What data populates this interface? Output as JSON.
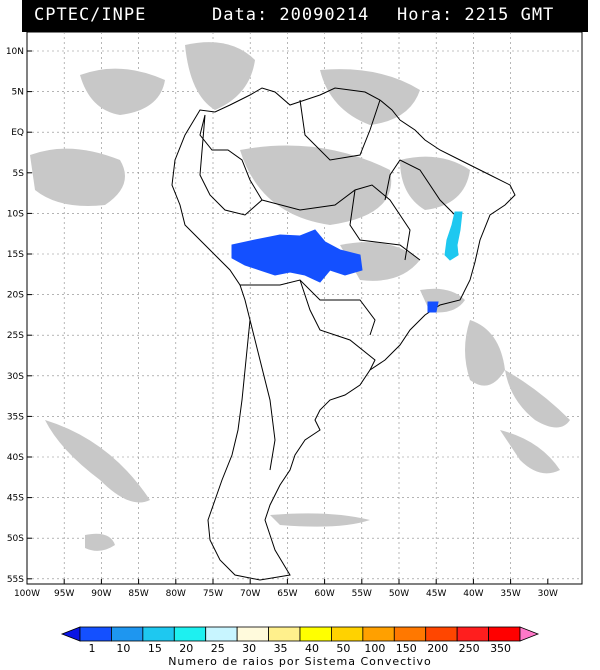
{
  "header": {
    "source": "CPTEC/INPE",
    "date_text": "Data: 20090214",
    "hour_text": "Hora: 2215 GMT"
  },
  "map": {
    "lat_labels": [
      "10N",
      "5N",
      "EQ",
      "5S",
      "10S",
      "15S",
      "20S",
      "25S",
      "30S",
      "35S",
      "40S",
      "45S",
      "50S",
      "55S"
    ],
    "lon_labels": [
      "100W",
      "95W",
      "90W",
      "85W",
      "80W",
      "75W",
      "70W",
      "65W",
      "60W",
      "55W",
      "50W",
      "45W",
      "40W",
      "35W",
      "30W"
    ],
    "clusters": [
      {
        "name": "central-south-america-cluster",
        "level": "10",
        "color": "#1450ff"
      },
      {
        "name": "eastern-brazil-cluster",
        "level": "20",
        "color": "#1ec8f0"
      },
      {
        "name": "southeast-brazil-cluster",
        "level": "10",
        "color": "#1450ff"
      }
    ]
  },
  "legend": {
    "colors": [
      "#0a14e6",
      "#1450ff",
      "#1e96f0",
      "#1ec8f0",
      "#1ef0f0",
      "#c8f5ff",
      "#fffadc",
      "#fff08c",
      "#ffff00",
      "#ffd200",
      "#ffa000",
      "#ff7800",
      "#ff4600",
      "#ff1e1e",
      "#ff0000",
      "#ff78c8"
    ],
    "labels": [
      "1",
      "10",
      "15",
      "20",
      "25",
      "30",
      "35",
      "40",
      "50",
      "100",
      "150",
      "200",
      "250",
      "350"
    ],
    "title": "Numero de raios por Sistema Convectivo"
  }
}
